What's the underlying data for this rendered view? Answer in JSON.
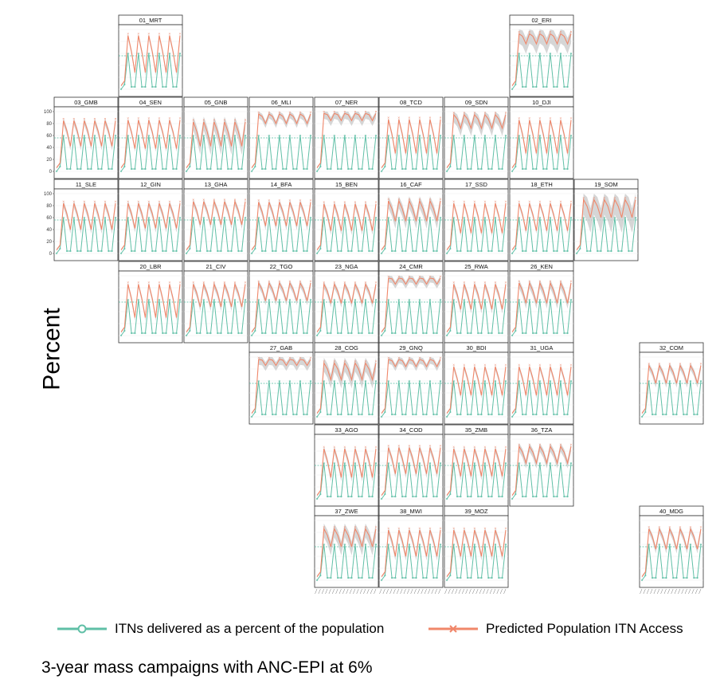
{
  "chart_data": {
    "type": "line",
    "layout": "geofacet-grid",
    "ylabel": "Percent",
    "ylim": [
      0,
      100
    ],
    "yticks": [
      0,
      20,
      40,
      60,
      80,
      100
    ],
    "series": [
      {
        "name": "ITNs delivered as a percent of the population",
        "color": "#5fbfa6",
        "marker": "circle"
      },
      {
        "name": "Predicted Population ITN Access",
        "color": "#f0876a",
        "marker": "x"
      }
    ],
    "colors": {
      "itn": "#5fbfa6",
      "access": "#f0876a",
      "band": "#c8c8c8"
    },
    "facets": [
      {
        "label": "01_MRT",
        "row": 0,
        "col": 1,
        "hi": 90,
        "lo": 28,
        "band": 6
      },
      {
        "label": "02_ERI",
        "row": 0,
        "col": 7,
        "hi": 93,
        "lo": 76,
        "band": 18
      },
      {
        "label": "03_GMB",
        "row": 1,
        "col": 0,
        "hi": 85,
        "lo": 42,
        "band": 8
      },
      {
        "label": "04_SEN",
        "row": 1,
        "col": 1,
        "hi": 86,
        "lo": 38,
        "band": 6
      },
      {
        "label": "05_GNB",
        "row": 1,
        "col": 2,
        "hi": 83,
        "lo": 42,
        "band": 16
      },
      {
        "label": "06_MLI",
        "row": 1,
        "col": 3,
        "hi": 96,
        "lo": 80,
        "band": 8
      },
      {
        "label": "07_NER",
        "row": 1,
        "col": 4,
        "hi": 97,
        "lo": 85,
        "band": 10
      },
      {
        "label": "08_TCD",
        "row": 1,
        "col": 5,
        "hi": 87,
        "lo": 30,
        "band": 6
      },
      {
        "label": "09_SDN",
        "row": 1,
        "col": 6,
        "hi": 95,
        "lo": 72,
        "band": 14
      },
      {
        "label": "10_DJI",
        "row": 1,
        "col": 7,
        "hi": 86,
        "lo": 30,
        "band": 6
      },
      {
        "label": "11_SLE",
        "row": 2,
        "col": 0,
        "hi": 84,
        "lo": 40,
        "band": 8
      },
      {
        "label": "12_GIN",
        "row": 2,
        "col": 1,
        "hi": 84,
        "lo": 42,
        "band": 8
      },
      {
        "label": "13_GHA",
        "row": 2,
        "col": 2,
        "hi": 87,
        "lo": 48,
        "band": 8
      },
      {
        "label": "14_BFA",
        "row": 2,
        "col": 3,
        "hi": 86,
        "lo": 46,
        "band": 8
      },
      {
        "label": "15_BEN",
        "row": 2,
        "col": 4,
        "hi": 83,
        "lo": 38,
        "band": 8
      },
      {
        "label": "16_CAF",
        "row": 2,
        "col": 5,
        "hi": 88,
        "lo": 54,
        "band": 14
      },
      {
        "label": "17_SSD",
        "row": 2,
        "col": 6,
        "hi": 84,
        "lo": 34,
        "band": 6
      },
      {
        "label": "18_ETH",
        "row": 2,
        "col": 7,
        "hi": 84,
        "lo": 38,
        "band": 6
      },
      {
        "label": "19_SOM",
        "row": 2,
        "col": 8,
        "hi": 90,
        "lo": 60,
        "band": 28
      },
      {
        "label": "20_LBR",
        "row": 3,
        "col": 1,
        "hi": 86,
        "lo": 30,
        "band": 6
      },
      {
        "label": "21_CIV",
        "row": 3,
        "col": 2,
        "hi": 86,
        "lo": 48,
        "band": 8
      },
      {
        "label": "22_TGO",
        "row": 3,
        "col": 3,
        "hi": 88,
        "lo": 58,
        "band": 8
      },
      {
        "label": "23_NGA",
        "row": 3,
        "col": 4,
        "hi": 86,
        "lo": 54,
        "band": 8
      },
      {
        "label": "24_CMR",
        "row": 3,
        "col": 5,
        "hi": 96,
        "lo": 86,
        "band": 8
      },
      {
        "label": "25_RWA",
        "row": 3,
        "col": 6,
        "hi": 86,
        "lo": 44,
        "band": 8
      },
      {
        "label": "26_KEN",
        "row": 3,
        "col": 7,
        "hi": 88,
        "lo": 54,
        "band": 10
      },
      {
        "label": "27_GAB",
        "row": 4,
        "col": 3,
        "hi": 96,
        "lo": 86,
        "band": 10
      },
      {
        "label": "28_COG",
        "row": 4,
        "col": 4,
        "hi": 90,
        "lo": 62,
        "band": 16
      },
      {
        "label": "29_GNQ",
        "row": 4,
        "col": 5,
        "hi": 96,
        "lo": 84,
        "band": 8
      },
      {
        "label": "30_BDI",
        "row": 4,
        "col": 6,
        "hi": 84,
        "lo": 36,
        "band": 6
      },
      {
        "label": "31_UGA",
        "row": 4,
        "col": 7,
        "hi": 84,
        "lo": 36,
        "band": 6
      },
      {
        "label": "32_COM",
        "row": 4,
        "col": 9,
        "hi": 86,
        "lo": 56,
        "band": 8
      },
      {
        "label": "33_AGO",
        "row": 5,
        "col": 4,
        "hi": 84,
        "lo": 36,
        "band": 8
      },
      {
        "label": "34_COD",
        "row": 5,
        "col": 5,
        "hi": 86,
        "lo": 42,
        "band": 8
      },
      {
        "label": "35_ZMB",
        "row": 5,
        "col": 6,
        "hi": 84,
        "lo": 38,
        "band": 8
      },
      {
        "label": "36_TZA",
        "row": 5,
        "col": 7,
        "hi": 88,
        "lo": 60,
        "band": 10
      },
      {
        "label": "37_ZWE",
        "row": 6,
        "col": 4,
        "hi": 86,
        "lo": 56,
        "band": 16
      },
      {
        "label": "38_MWI",
        "row": 6,
        "col": 5,
        "hi": 84,
        "lo": 40,
        "band": 8
      },
      {
        "label": "39_MOZ",
        "row": 6,
        "col": 6,
        "hi": 84,
        "lo": 40,
        "band": 8
      },
      {
        "label": "40_MDG",
        "row": 6,
        "col": 9,
        "hi": 86,
        "lo": 52,
        "band": 8
      }
    ]
  },
  "legend": {
    "itn_label": "ITNs delivered as a percent of the population",
    "access_label": "Predicted Population ITN Access"
  },
  "caption": "3-year mass campaigns with ANC-EPI at  6%"
}
